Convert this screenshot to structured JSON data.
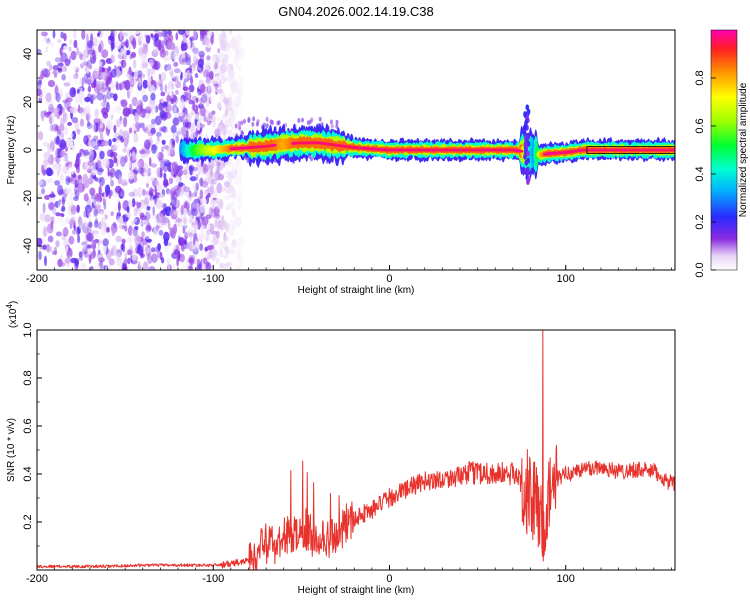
{
  "chart_data": [
    {
      "type": "heatmap",
      "title": "GN04.2026.002.14.19.C38",
      "xlabel": "Height of straight line (km)",
      "ylabel": "Frequency (Hz)",
      "xlim": [
        -200,
        162
      ],
      "ylim": [
        -50,
        50
      ],
      "x_ticks": [
        "-200",
        "-100",
        "0",
        "100"
      ],
      "x_tick_values": [
        -200,
        -100,
        0,
        100
      ],
      "y_ticks": [
        "40",
        "20",
        "0",
        "-20",
        "-40"
      ],
      "y_tick_values": [
        40,
        20,
        0,
        -20,
        -40
      ],
      "colorbar": {
        "label": "Normalized spectral amplitude",
        "range": [
          0,
          1
        ],
        "ticks": [
          "0.0",
          "0.2",
          "0.4",
          "0.6",
          "0.8"
        ],
        "tick_values": [
          0.0,
          0.2,
          0.4,
          0.6,
          0.8
        ]
      },
      "ridge": {
        "x": [
          -118,
          -110,
          -100,
          -90,
          -80,
          -70,
          -60,
          -50,
          -40,
          -30,
          -20,
          -10,
          0,
          10,
          20,
          30,
          40,
          50,
          60,
          70,
          75,
          78,
          82,
          86,
          90,
          100,
          110,
          120,
          130,
          140,
          150,
          162
        ],
        "freq": [
          0,
          0,
          0,
          0.5,
          1,
          1.5,
          2.5,
          3,
          3,
          2,
          1,
          0.5,
          0,
          0,
          0,
          0,
          0,
          0,
          0,
          0,
          -0.5,
          -1,
          -1.5,
          -2,
          -1.5,
          -1,
          0,
          0,
          0,
          0,
          0,
          0
        ],
        "amplitude": [
          0.3,
          0.55,
          0.7,
          0.85,
          0.85,
          0.9,
          0.8,
          0.9,
          0.85,
          0.9,
          0.95,
          0.95,
          0.9,
          0.95,
          0.95,
          0.95,
          0.9,
          0.95,
          0.95,
          0.9,
          0.85,
          0.5,
          0.3,
          0.8,
          0.9,
          0.95,
          0.95,
          0.95,
          0.95,
          0.95,
          0.95,
          0.95
        ]
      },
      "noise_region_x": [
        -200,
        -88
      ]
    },
    {
      "type": "line",
      "xlabel": "Height of straight line (km)",
      "ylabel": "SNR (10 * v/v)",
      "y_multiplier": "(x10",
      "y_multiplier_exp": "4",
      "y_multiplier_close": ")",
      "xlim": [
        -200,
        162
      ],
      "ylim": [
        0,
        1.0
      ],
      "x_ticks": [
        "-200",
        "-100",
        "0",
        "100"
      ],
      "x_tick_values": [
        -200,
        -100,
        0,
        100
      ],
      "y_ticks": [
        "1.0",
        "0.8",
        "0.6",
        "0.4",
        "0.2"
      ],
      "y_tick_values": [
        1.0,
        0.8,
        0.6,
        0.4,
        0.2
      ],
      "color": "#e8322c",
      "series": {
        "x": [
          -200,
          -180,
          -160,
          -140,
          -120,
          -100,
          -90,
          -80,
          -70,
          -60,
          -50,
          -40,
          -30,
          -20,
          -10,
          0,
          10,
          20,
          30,
          40,
          50,
          60,
          70,
          75,
          80,
          85,
          88,
          90,
          95,
          100,
          110,
          120,
          130,
          140,
          150,
          162
        ],
        "y": [
          0.015,
          0.015,
          0.015,
          0.02,
          0.02,
          0.02,
          0.025,
          0.04,
          0.1,
          0.13,
          0.16,
          0.12,
          0.16,
          0.22,
          0.25,
          0.3,
          0.34,
          0.37,
          0.38,
          0.39,
          0.41,
          0.4,
          0.4,
          0.37,
          0.3,
          0.25,
          0.1,
          0.3,
          0.38,
          0.4,
          0.42,
          0.43,
          0.41,
          0.42,
          0.41,
          0.35
        ],
        "peak": {
          "x": 87,
          "y": 1.0
        }
      }
    }
  ]
}
